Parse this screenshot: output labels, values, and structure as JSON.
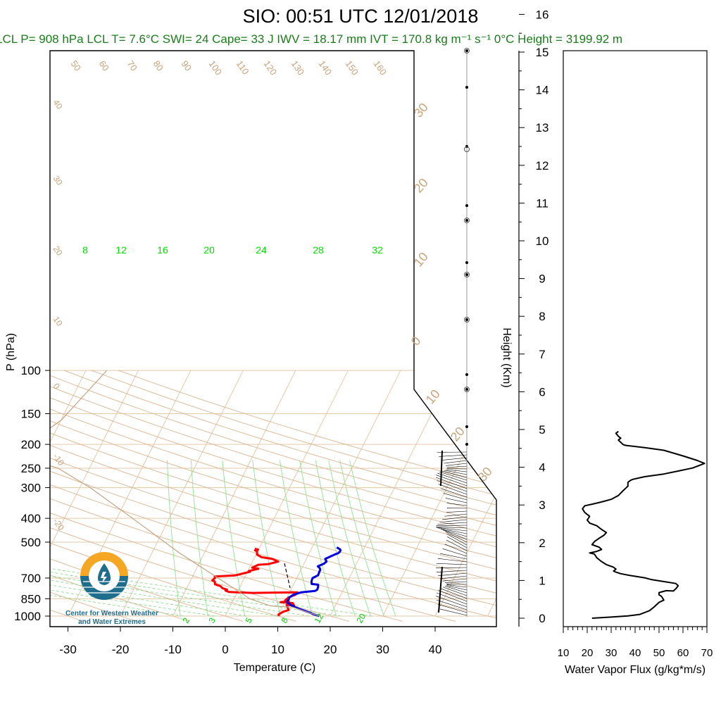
{
  "title": "SIO: 00:51 UTC 12/01/2018",
  "subtitle": "LCL P= 908 hPa  LCL T= 7.6°C  SWI= 24  Cape= 33 J  IWV = 18.17 mm  IVT = 170.8 kg m⁻¹ s⁻¹  0°C Height = 3199.92 m",
  "logo": {
    "line1": "Center for Western Weather",
    "line2": "and Water Extremes"
  },
  "colors": {
    "temperature": "#ff0000",
    "dewpoint": "#0000dd",
    "dry_adiabat": "#c9a37a",
    "mixing_ratio": "#00dd00",
    "parcel": "#c4a383",
    "profile": "#000000"
  },
  "chart_data": [
    {
      "type": "line",
      "subtype": "skew-T log-P",
      "xlabel": "Temperature (C)",
      "ylabel": "P (hPa)",
      "right_axis_label": "Height (Km)",
      "x_ticks": [
        -30,
        -20,
        -10,
        0,
        10,
        20,
        30,
        40
      ],
      "y_ticks": [
        100,
        150,
        200,
        250,
        300,
        400,
        500,
        700,
        850,
        1000
      ],
      "height_ticks": [
        0,
        1,
        2,
        3,
        4,
        5,
        6,
        7,
        8,
        9,
        10,
        11,
        12,
        13,
        14,
        15,
        16
      ],
      "dry_adiabat_labels": [
        "50",
        "60",
        "70",
        "80",
        "90",
        "100",
        "110",
        "120",
        "130",
        "140",
        "150",
        "160",
        "40",
        "30",
        "20",
        "10",
        "0",
        "-10",
        "-20"
      ],
      "mixing_ratio_labels": [
        "8",
        "12",
        "16",
        "20",
        "24",
        "28",
        "32"
      ],
      "moist_adiabat_labels": [
        "2",
        "3",
        "5",
        "8",
        "12",
        "20"
      ],
      "isotherm_labels": [
        "30",
        "20",
        "10",
        "0",
        "10",
        "20",
        "30"
      ],
      "series": [
        {
          "name": "Temperature",
          "color": "#ff0000",
          "points": [
            [
              10.2,
              1000
            ],
            [
              10.0,
              985
            ],
            [
              10.6,
              960
            ],
            [
              11.5,
              945
            ],
            [
              11.0,
              920
            ],
            [
              10.6,
              900
            ],
            [
              12.1,
              905
            ],
            [
              11.6,
              885
            ],
            [
              10.2,
              880
            ],
            [
              9.2,
              878
            ],
            [
              10.7,
              870
            ],
            [
              9.9,
              862
            ],
            [
              10.3,
              840
            ],
            [
              11.3,
              820
            ],
            [
              11.5,
              800
            ],
            [
              3.0,
              805
            ],
            [
              -1.6,
              798
            ],
            [
              -2.4,
              787
            ],
            [
              -2.2,
              780
            ],
            [
              -3.2,
              770
            ],
            [
              -3.8,
              755
            ],
            [
              -5.0,
              742
            ],
            [
              -5.3,
              723
            ],
            [
              -5.9,
              715
            ],
            [
              -5.6,
              700
            ],
            [
              -5.8,
              690
            ],
            [
              -2.0,
              683
            ],
            [
              0.5,
              660
            ],
            [
              0.2,
              655
            ],
            [
              1.8,
              642
            ],
            [
              0.5,
              635
            ],
            [
              1.4,
              618
            ],
            [
              3.3,
              614
            ],
            [
              4.9,
              600
            ],
            [
              3.5,
              585
            ],
            [
              1.3,
              576
            ],
            [
              0.2,
              562
            ],
            [
              0.0,
              552
            ],
            [
              -0.1,
              545
            ],
            [
              -0.6,
              540
            ],
            [
              -0.1,
              536
            ],
            [
              -0.8,
              532
            ]
          ]
        },
        {
          "name": "Dewpoint",
          "color": "#0000dd",
          "points": [
            [
              17.9,
              1000
            ],
            [
              16.8,
              985
            ],
            [
              15.9,
              970
            ],
            [
              14.5,
              950
            ],
            [
              13.1,
              930
            ],
            [
              11.6,
              905
            ],
            [
              10.5,
              880
            ],
            [
              10.4,
              870
            ],
            [
              10.5,
              855
            ],
            [
              10.4,
              840
            ],
            [
              10.9,
              820
            ],
            [
              12.2,
              800
            ],
            [
              14.7,
              790
            ],
            [
              15.0,
              780
            ],
            [
              14.9,
              760
            ],
            [
              14.7,
              745
            ],
            [
              13.4,
              740
            ],
            [
              13.1,
              720
            ],
            [
              13.0,
              700
            ],
            [
              13.8,
              682
            ],
            [
              13.7,
              660
            ],
            [
              13.7,
              648
            ],
            [
              13.5,
              640
            ],
            [
              12.9,
              627
            ],
            [
              13.8,
              612
            ],
            [
              14.1,
              600
            ],
            [
              13.6,
              585
            ],
            [
              14.5,
              570
            ],
            [
              15.1,
              560
            ],
            [
              15.5,
              555
            ],
            [
              15.7,
              548
            ],
            [
              15.7,
              540
            ],
            [
              15.5,
              535
            ],
            [
              14.7,
              525
            ]
          ]
        },
        {
          "name": "Parcel",
          "color": "#c4a383",
          "points": [
            [
              18.0,
              1000
            ],
            [
              12.0,
              920
            ],
            [
              7.6,
              908
            ],
            [
              3.0,
              850
            ],
            [
              -5.0,
              700
            ],
            [
              -15.0,
              550
            ],
            [
              -27.0,
              400
            ],
            [
              -38.0,
              300
            ],
            [
              -46.0,
              250
            ],
            [
              -56.0,
              220
            ],
            [
              -50.0,
              160
            ],
            [
              -46.0,
              100
            ]
          ]
        }
      ]
    },
    {
      "type": "line",
      "xlabel": "Water Vapor Flux (g/kg*m/s)",
      "x_ticks": [
        10,
        20,
        30,
        40,
        50,
        60,
        70
      ],
      "xlim": [
        10,
        70
      ],
      "ylim": [
        0,
        16.5
      ],
      "series": [
        {
          "name": "Water Vapor Flux",
          "points": [
            [
              22,
              0.0
            ],
            [
              30,
              0.03
            ],
            [
              37,
              0.06
            ],
            [
              42,
              0.1
            ],
            [
              46,
              0.2
            ],
            [
              48,
              0.3
            ],
            [
              50,
              0.42
            ],
            [
              52,
              0.48
            ],
            [
              51,
              0.58
            ],
            [
              50,
              0.62
            ],
            [
              50,
              0.68
            ],
            [
              53,
              0.73
            ],
            [
              56,
              0.72
            ],
            [
              57,
              0.78
            ],
            [
              58,
              0.86
            ],
            [
              57,
              0.92
            ],
            [
              53,
              0.96
            ],
            [
              47,
              1.02
            ],
            [
              44,
              1.07
            ],
            [
              38,
              1.13
            ],
            [
              34,
              1.18
            ],
            [
              32,
              1.22
            ],
            [
              31,
              1.25
            ],
            [
              32,
              1.3
            ],
            [
              31,
              1.35
            ],
            [
              28,
              1.42
            ],
            [
              26,
              1.5
            ],
            [
              24,
              1.6
            ],
            [
              23,
              1.7
            ],
            [
              21,
              1.73
            ],
            [
              24,
              1.77
            ],
            [
              26,
              1.82
            ],
            [
              25,
              1.88
            ],
            [
              22,
              1.95
            ],
            [
              23,
              2.03
            ],
            [
              25,
              2.12
            ],
            [
              27,
              2.2
            ],
            [
              28,
              2.27
            ],
            [
              26,
              2.35
            ],
            [
              24,
              2.45
            ],
            [
              21,
              2.52
            ],
            [
              20,
              2.6
            ],
            [
              21,
              2.7
            ],
            [
              19,
              2.8
            ],
            [
              18,
              2.9
            ],
            [
              19,
              2.98
            ],
            [
              22,
              3.02
            ],
            [
              26,
              3.08
            ],
            [
              30,
              3.15
            ],
            [
              33,
              3.25
            ],
            [
              35,
              3.38
            ],
            [
              37,
              3.5
            ],
            [
              37,
              3.6
            ],
            [
              38,
              3.65
            ],
            [
              39,
              3.68
            ],
            [
              44,
              3.75
            ],
            [
              52,
              3.82
            ],
            [
              58,
              3.9
            ],
            [
              64,
              3.98
            ],
            [
              69,
              4.1
            ],
            [
              66,
              4.18
            ],
            [
              60,
              4.3
            ],
            [
              52,
              4.45
            ],
            [
              44,
              4.52
            ],
            [
              40,
              4.55
            ],
            [
              36,
              4.58
            ],
            [
              35,
              4.6
            ],
            [
              34,
              4.66
            ],
            [
              33,
              4.72
            ],
            [
              34,
              4.77
            ],
            [
              33,
              4.82
            ],
            [
              32,
              4.9
            ],
            [
              33,
              4.95
            ]
          ]
        }
      ]
    }
  ]
}
